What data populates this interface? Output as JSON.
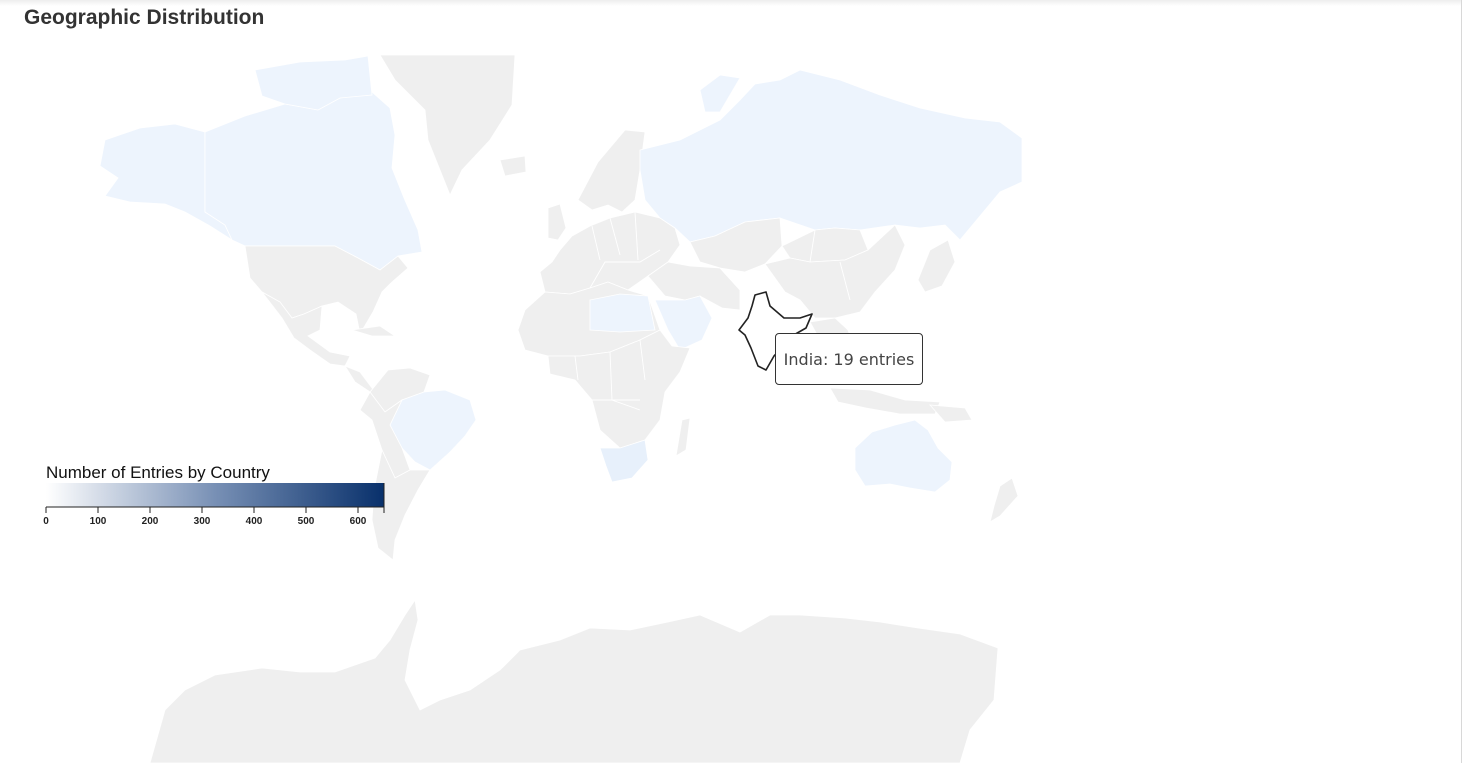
{
  "header": {
    "title": "Geographic Distribution"
  },
  "tooltip": {
    "country": "India",
    "text": "India: 19 entries"
  },
  "legend": {
    "title": "Number of Entries by Country",
    "min": 0,
    "max": 650,
    "ticks": [
      0,
      100,
      200,
      300,
      400,
      500,
      600
    ],
    "color_low": "#ffffff",
    "color_high": "#08306b"
  },
  "map": {
    "projection": "mercator",
    "base_fill": "#efefef",
    "highlighted_country": "India",
    "tinted_countries": [
      "Canada",
      "Russia",
      "Brazil",
      "Australia",
      "Saudi Arabia",
      "South Africa",
      "Libya",
      "Egypt"
    ],
    "tint_color": "#edf4fd"
  }
}
